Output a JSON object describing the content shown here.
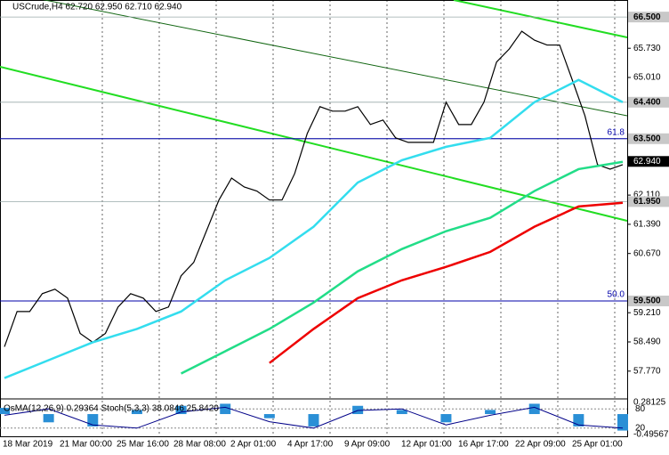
{
  "chart_data": {
    "type": "line",
    "title": "USCrude,H4  62.720 62.950 62.710 62.940",
    "values": [
      58.37,
      59.24,
      59.24,
      59.68,
      59.79,
      59.57,
      58.7,
      58.48,
      58.7,
      59.35,
      59.68,
      59.57,
      59.24,
      59.35,
      60.12,
      60.45,
      61.22,
      61.99,
      62.53,
      62.31,
      62.21,
      61.99,
      61.99,
      62.64,
      63.63,
      64.29,
      64.18,
      64.18,
      64.29,
      63.85,
      63.96,
      63.52,
      63.41,
      63.41,
      63.41,
      64.4,
      63.85,
      63.85,
      64.4,
      65.39,
      65.71,
      66.15,
      65.93,
      65.81,
      65.81,
      64.95,
      64.07,
      62.86,
      62.75,
      62.86
    ],
    "color": "#000000",
    "series": [
      {
        "color": "#33ddee",
        "values": [
          57.6,
          58.04,
          58.48,
          58.81,
          59.24,
          60.01,
          60.56,
          61.33,
          62.42,
          62.97,
          63.3,
          63.52,
          64.4,
          64.95,
          64.4
        ]
      },
      {
        "color": "#22dd88",
        "values": [
          null,
          null,
          null,
          null,
          57.71,
          58.26,
          58.81,
          59.46,
          60.23,
          60.78,
          61.22,
          61.55,
          62.21,
          62.75,
          62.93
        ]
      },
      {
        "color": "#ee0000",
        "values": [
          null,
          null,
          null,
          null,
          null,
          null,
          57.97,
          58.81,
          59.57,
          60.01,
          60.34,
          60.71,
          61.33,
          61.83,
          61.92
        ]
      }
    ],
    "ylim": [
      57.59,
      66.92
    ],
    "yticks": [
      {
        "value": 65.73,
        "label": "65.730"
      },
      {
        "value": 65.01,
        "label": "65.010"
      },
      {
        "value": 62.11,
        "label": "62.110"
      },
      {
        "value": 61.39,
        "label": "61.390"
      },
      {
        "value": 60.67,
        "label": "60.670"
      },
      {
        "value": 59.21,
        "label": "59.210"
      },
      {
        "value": 58.49,
        "label": "58.490"
      },
      {
        "value": 57.77,
        "label": "57.770"
      }
    ],
    "levels": [
      {
        "value": 66.5,
        "label": "66.500"
      },
      {
        "value": 64.4,
        "label": "64.400"
      },
      {
        "value": 63.5,
        "label": "63.500"
      },
      {
        "value": 61.95,
        "label": "61.950"
      },
      {
        "value": 59.5,
        "label": "59.500"
      }
    ],
    "fib": [
      {
        "value": 63.5,
        "label": "61.8"
      },
      {
        "value": 59.5,
        "label": "50.0"
      }
    ],
    "last": {
      "value": 62.94,
      "label": "62.940"
    },
    "x_labels": [
      "18 Mar 2019",
      "21 Mar 00:00",
      "25 Mar 16:00",
      "28 Mar 08:00",
      "2 Apr 01:00",
      "4 Apr 17:00",
      "9 Apr 09:00",
      "12 Apr 01:00",
      "16 Apr 17:00",
      "22 Apr 09:00",
      "25 Apr 01:00"
    ],
    "indicator": {
      "title": "OsMA(12,26,9) 0.29364  Stoch(5,3,3) 38.0846 25.8420",
      "ylim": [
        -0.49567,
        0.28125
      ],
      "yticks": [
        0.28125,
        -0.49567
      ],
      "stoch_ticks": [
        80,
        20
      ],
      "osma": [
        0.15,
        -0.2,
        -0.3,
        0.1,
        0.2,
        0.25,
        -0.1,
        -0.3,
        0.2,
        0.1,
        -0.2,
        0.1,
        0.25,
        -0.3,
        -0.4
      ],
      "stoch": [
        60,
        80,
        30,
        20,
        70,
        85,
        40,
        20,
        75,
        80,
        30,
        60,
        85,
        30,
        20
      ]
    }
  }
}
